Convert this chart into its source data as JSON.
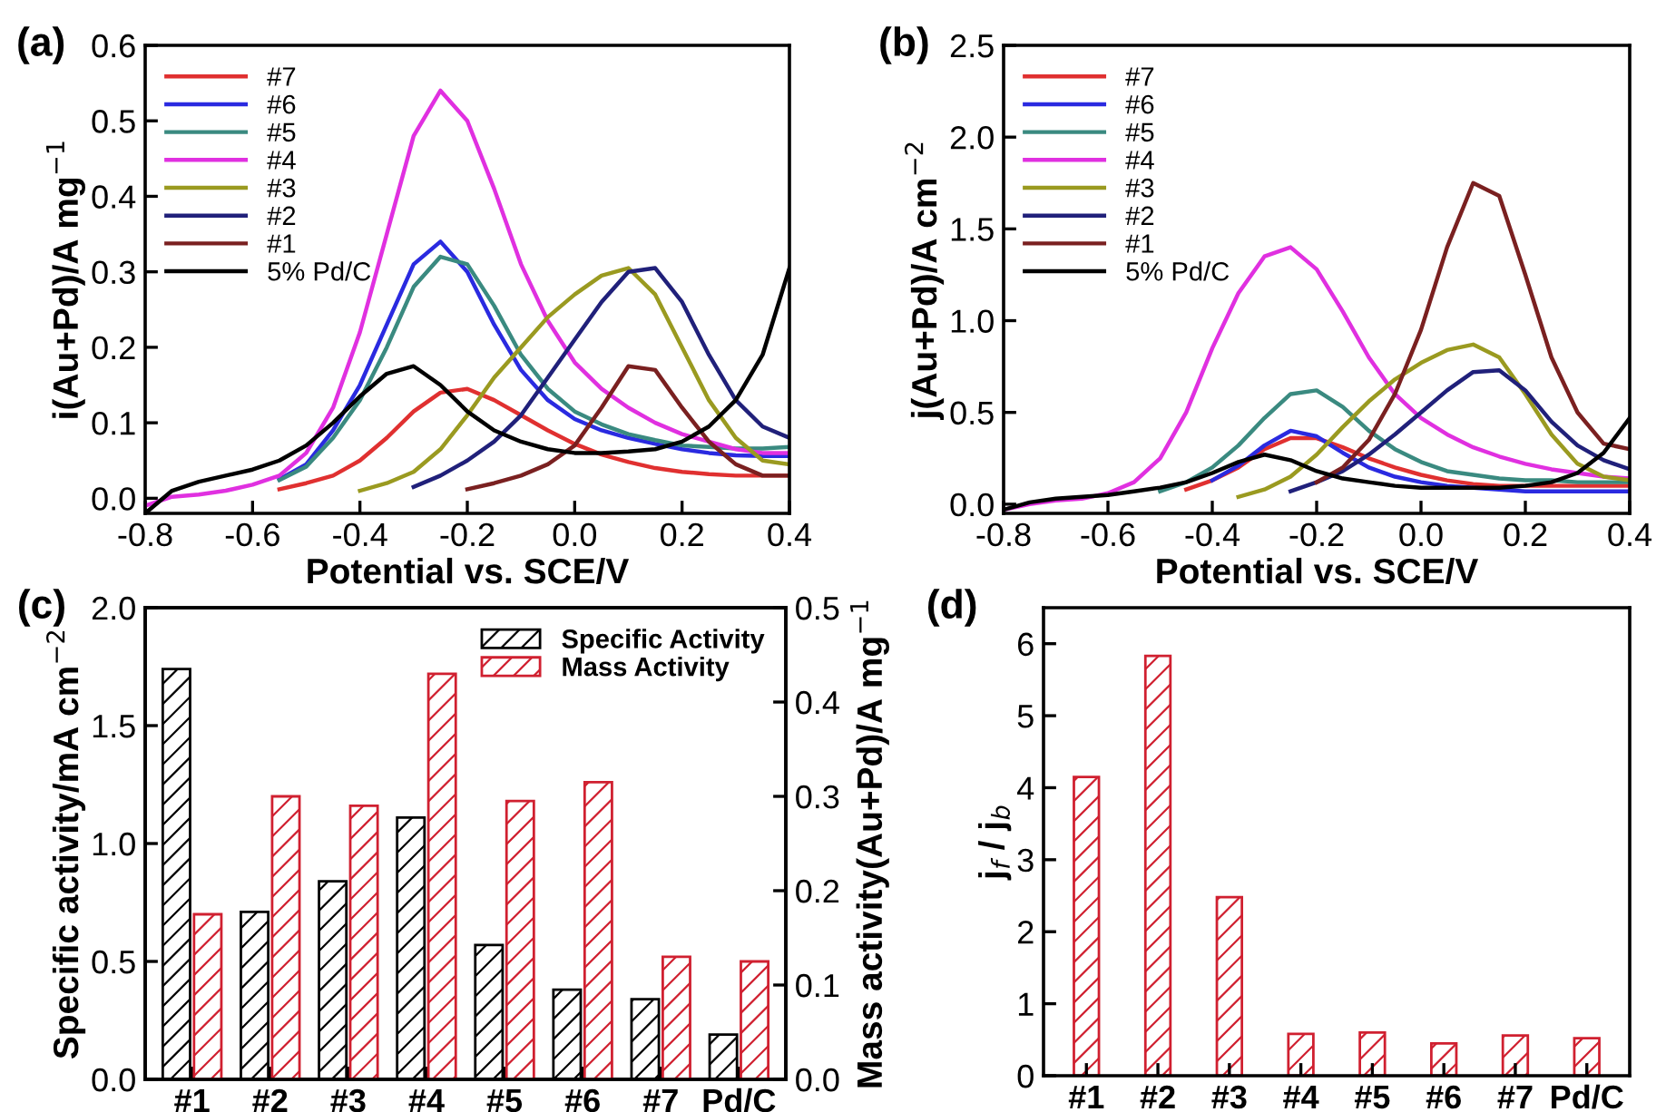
{
  "chart_data": [
    {
      "type": "line",
      "annotations": [
        "(a)"
      ],
      "xlabel": "Potential vs. SCE/V",
      "ylabel": "i(Au+Pd)/A mg$^{−1}$",
      "legend": "top left",
      "xlim": [
        -0.8,
        0.4
      ],
      "ylim": [
        -0.02,
        0.6
      ],
      "xticks": [
        -0.8,
        -0.6,
        -0.4,
        -0.2,
        {
          "value": 0,
          "label": "0.0"
        },
        0.2,
        0.4
      ],
      "yticks": [
        {
          "value": 0,
          "label": "0.0"
        },
        0.1,
        0.2,
        0.3,
        0.4,
        0.5,
        0.6
      ],
      "x": [
        -0.8,
        -0.75,
        -0.7,
        -0.65,
        -0.6,
        -0.55,
        -0.5,
        -0.45,
        -0.4,
        -0.35,
        -0.3,
        -0.25,
        -0.2,
        -0.15,
        -0.1,
        -0.05,
        0,
        0.05,
        0.1,
        0.15,
        0.2,
        0.25,
        0.3,
        0.35,
        0.4
      ],
      "series": [
        {
          "name": "#7",
          "color": "#e03030",
          "values": [
            null,
            null,
            null,
            null,
            null,
            0.012,
            0.02,
            0.03,
            0.05,
            0.08,
            0.115,
            0.14,
            0.145,
            0.13,
            0.11,
            0.09,
            0.072,
            0.058,
            0.048,
            0.04,
            0.035,
            0.032,
            0.03,
            0.03,
            0.03
          ]
        },
        {
          "name": "#6",
          "color": "#2a2ae0",
          "values": [
            null,
            null,
            null,
            null,
            null,
            0.025,
            0.045,
            0.09,
            0.15,
            0.23,
            0.31,
            0.34,
            0.3,
            0.23,
            0.17,
            0.13,
            0.105,
            0.09,
            0.08,
            0.072,
            0.065,
            0.06,
            0.057,
            0.056,
            0.056
          ]
        },
        {
          "name": "#5",
          "color": "#3a8a80",
          "values": [
            null,
            null,
            null,
            null,
            null,
            0.024,
            0.042,
            0.08,
            0.13,
            0.2,
            0.28,
            0.32,
            0.31,
            0.255,
            0.19,
            0.145,
            0.115,
            0.098,
            0.085,
            0.077,
            0.07,
            0.068,
            0.066,
            0.066,
            0.068
          ]
        },
        {
          "name": "#4",
          "color": "#e030e0",
          "values": [
            -0.01,
            0.002,
            0.005,
            0.01,
            0.018,
            0.03,
            0.06,
            0.12,
            0.22,
            0.35,
            0.48,
            0.54,
            0.5,
            0.41,
            0.31,
            0.235,
            0.18,
            0.145,
            0.12,
            0.1,
            0.085,
            0.075,
            0.065,
            0.06,
            0.06
          ]
        },
        {
          "name": "#3",
          "color": "#9a9a20",
          "values": [
            null,
            null,
            null,
            null,
            null,
            null,
            null,
            null,
            0.01,
            0.02,
            0.035,
            0.065,
            0.11,
            0.16,
            0.2,
            0.24,
            0.27,
            0.295,
            0.305,
            0.27,
            0.2,
            0.13,
            0.08,
            0.05,
            0.045
          ]
        },
        {
          "name": "#2",
          "color": "#20207a",
          "values": [
            null,
            null,
            null,
            null,
            null,
            null,
            null,
            null,
            null,
            null,
            0.015,
            0.03,
            0.05,
            0.075,
            0.11,
            0.16,
            0.21,
            0.26,
            0.3,
            0.305,
            0.26,
            0.19,
            0.13,
            0.095,
            0.08
          ]
        },
        {
          "name": "#1",
          "color": "#7a2020",
          "values": [
            null,
            null,
            null,
            null,
            null,
            null,
            null,
            null,
            null,
            null,
            null,
            null,
            0.012,
            0.02,
            0.03,
            0.045,
            0.07,
            0.12,
            0.175,
            0.17,
            0.12,
            0.075,
            0.045,
            0.03,
            0.03
          ]
        },
        {
          "name": "5% Pd/C",
          "color": "#000000",
          "values": [
            -0.02,
            0.01,
            0.022,
            0.03,
            0.038,
            0.05,
            0.07,
            0.1,
            0.135,
            0.165,
            0.175,
            0.15,
            0.115,
            0.09,
            0.075,
            0.065,
            0.06,
            0.06,
            0.062,
            0.065,
            0.075,
            0.095,
            0.13,
            0.19,
            0.305
          ]
        }
      ]
    },
    {
      "type": "line",
      "annotations": [
        "(b)"
      ],
      "xlabel": "Potential vs. SCE/V",
      "ylabel": "j(Au+Pd)/A cm$^{−2}$",
      "legend": "top left",
      "xlim": [
        -0.8,
        0.4
      ],
      "ylim": [
        -0.05,
        2.5
      ],
      "xticks": [
        -0.8,
        -0.6,
        -0.4,
        -0.2,
        {
          "value": 0,
          "label": "0.0"
        },
        0.2,
        0.4
      ],
      "yticks": [
        {
          "value": 0,
          "label": "0.0"
        },
        0.5,
        {
          "value": 1,
          "label": "1.0"
        },
        1.5,
        {
          "value": 2,
          "label": "2.0"
        },
        2.5
      ],
      "x": [
        -0.8,
        -0.75,
        -0.7,
        -0.65,
        -0.6,
        -0.55,
        -0.5,
        -0.45,
        -0.4,
        -0.35,
        -0.3,
        -0.25,
        -0.2,
        -0.15,
        -0.1,
        -0.05,
        0,
        0.05,
        0.1,
        0.15,
        0.2,
        0.25,
        0.3,
        0.35,
        0.4
      ],
      "series": [
        {
          "name": "#7",
          "color": "#e03030",
          "values": [
            null,
            null,
            null,
            null,
            null,
            null,
            null,
            0.08,
            0.13,
            0.2,
            0.3,
            0.36,
            0.36,
            0.31,
            0.25,
            0.2,
            0.16,
            0.13,
            0.11,
            0.1,
            0.1,
            0.1,
            0.1,
            0.1,
            0.1
          ]
        },
        {
          "name": "#6",
          "color": "#2a2ae0",
          "values": [
            null,
            null,
            null,
            null,
            null,
            null,
            null,
            null,
            0.13,
            0.21,
            0.32,
            0.4,
            0.37,
            0.28,
            0.2,
            0.15,
            0.12,
            0.1,
            0.09,
            0.08,
            0.07,
            0.07,
            0.07,
            0.07,
            0.07
          ]
        },
        {
          "name": "#5",
          "color": "#3a8a80",
          "values": [
            null,
            null,
            null,
            null,
            null,
            null,
            0.07,
            0.12,
            0.2,
            0.32,
            0.47,
            0.6,
            0.62,
            0.53,
            0.4,
            0.3,
            0.23,
            0.18,
            0.16,
            0.14,
            0.13,
            0.13,
            0.12,
            0.12,
            0.12
          ]
        },
        {
          "name": "#4",
          "color": "#e030e0",
          "values": [
            -0.03,
            0.0,
            0.02,
            0.03,
            0.06,
            0.12,
            0.25,
            0.5,
            0.85,
            1.15,
            1.35,
            1.4,
            1.28,
            1.05,
            0.8,
            0.6,
            0.47,
            0.38,
            0.31,
            0.26,
            0.22,
            0.19,
            0.17,
            0.15,
            0.14
          ]
        },
        {
          "name": "#3",
          "color": "#9a9a20",
          "values": [
            null,
            null,
            null,
            null,
            null,
            null,
            null,
            null,
            null,
            0.04,
            0.08,
            0.15,
            0.27,
            0.42,
            0.56,
            0.68,
            0.77,
            0.84,
            0.87,
            0.8,
            0.6,
            0.38,
            0.22,
            0.15,
            0.13
          ]
        },
        {
          "name": "#2",
          "color": "#20207a",
          "values": [
            null,
            null,
            null,
            null,
            null,
            null,
            null,
            null,
            null,
            null,
            null,
            0.07,
            0.12,
            0.18,
            0.27,
            0.38,
            0.5,
            0.62,
            0.72,
            0.73,
            0.62,
            0.45,
            0.32,
            0.24,
            0.19
          ]
        },
        {
          "name": "#1",
          "color": "#7a2020",
          "values": [
            null,
            null,
            null,
            null,
            null,
            null,
            null,
            null,
            null,
            null,
            null,
            null,
            0.12,
            0.2,
            0.35,
            0.6,
            0.95,
            1.4,
            1.75,
            1.68,
            1.25,
            0.8,
            0.5,
            0.33,
            0.3
          ]
        },
        {
          "name": "5% Pd/C",
          "color": "#000000",
          "values": [
            -0.03,
            0.01,
            0.03,
            0.04,
            0.05,
            0.07,
            0.09,
            0.12,
            0.17,
            0.23,
            0.27,
            0.24,
            0.18,
            0.14,
            0.12,
            0.1,
            0.09,
            0.09,
            0.09,
            0.09,
            0.1,
            0.12,
            0.17,
            0.28,
            0.47
          ]
        }
      ]
    },
    {
      "type": "bar",
      "annotations": [
        "(c)"
      ],
      "ylabel": "Specific activity/mA cm$^{−2}$",
      "y2label": "Mass activity(Au+Pd)/A mg$^{−1}$",
      "legend": "top right",
      "categories": [
        "#1",
        "#2",
        "#3",
        "#4",
        "#5",
        "#6",
        "#7",
        "Pd/C"
      ],
      "ylim": [
        0,
        2
      ],
      "yticks": [
        {
          "value": 0,
          "label": "0.0"
        },
        0.5,
        {
          "value": 1,
          "label": "1.0"
        },
        1.5,
        {
          "value": 2,
          "label": "2.0"
        }
      ],
      "y2lim": [
        0,
        0.5
      ],
      "y2ticks": [
        {
          "value": 0,
          "label": "0.0"
        },
        0.1,
        0.2,
        0.3,
        0.4,
        0.5
      ],
      "series": [
        {
          "name": "Specific Activity",
          "color": "#000000",
          "values": [
            1.74,
            0.71,
            0.84,
            1.11,
            0.57,
            0.38,
            0.34,
            0.19
          ]
        },
        {
          "name": "Mass Activity",
          "color": "#d02030",
          "axis": "y2",
          "values": [
            0.175,
            0.3,
            0.29,
            0.43,
            0.295,
            0.315,
            0.13,
            0.125
          ]
        }
      ]
    },
    {
      "type": "bar",
      "annotations": [
        "(d)"
      ],
      "ylabel": "j$_{f}$ / j$_{b}$",
      "categories": [
        "#1",
        "#2",
        "#3",
        "#4",
        "#5",
        "#6",
        "#7",
        "Pd/C"
      ],
      "ylim": [
        0,
        6.5
      ],
      "yticks": [
        0,
        1,
        2,
        3,
        4,
        5,
        6
      ],
      "series": [
        {
          "color": "#d02030",
          "values": [
            4.15,
            5.83,
            2.48,
            0.58,
            0.6,
            0.45,
            0.56,
            0.52
          ]
        }
      ]
    }
  ]
}
